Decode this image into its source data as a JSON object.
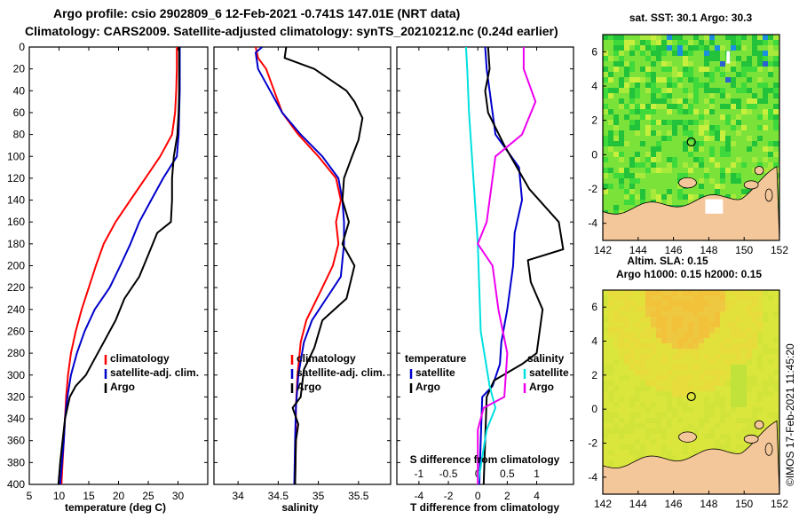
{
  "header": {
    "line1": "Argo profile: csio 2902809_6 12-Feb-2021 -0.741S 147.01E (NRT data)",
    "line2": "Climatology: CARS2009. Satellite-adjusted climatology: synTS_20210212.nc (0.24d earlier)"
  },
  "colors": {
    "climatology": "#ff0000",
    "satellite": "#0000cc",
    "argo": "#000000",
    "cyan": "#00e0e0",
    "magenta": "#ee00ee",
    "land": "#f4c79a"
  },
  "chart_data": [
    {
      "type": "line",
      "title": "",
      "xlabel": "temperature (deg C)",
      "ylabel": "",
      "xlim": [
        5,
        35
      ],
      "ylim": [
        400,
        0
      ],
      "xticks": [
        "5",
        "10",
        "15",
        "20",
        "25",
        "30"
      ],
      "yticks": [
        "0",
        "20",
        "40",
        "60",
        "80",
        "100",
        "120",
        "140",
        "160",
        "180",
        "200",
        "220",
        "240",
        "260",
        "280",
        "300",
        "320",
        "340",
        "360",
        "380",
        "400"
      ],
      "legend": [
        "climatology",
        "satellite-adj. clim.",
        "Argo"
      ],
      "series": [
        {
          "name": "climatology",
          "color": "climatology",
          "points": [
            [
              29.8,
              0
            ],
            [
              29.8,
              20
            ],
            [
              29.7,
              40
            ],
            [
              29.5,
              60
            ],
            [
              29.0,
              80
            ],
            [
              27.0,
              100
            ],
            [
              24.5,
              120
            ],
            [
              22.0,
              140
            ],
            [
              19.5,
              160
            ],
            [
              17.5,
              180
            ],
            [
              16.2,
              200
            ],
            [
              15.0,
              220
            ],
            [
              13.8,
              240
            ],
            [
              12.8,
              260
            ],
            [
              12.0,
              280
            ],
            [
              11.5,
              300
            ],
            [
              11.2,
              320
            ],
            [
              11.0,
              340
            ],
            [
              10.8,
              360
            ],
            [
              10.6,
              380
            ],
            [
              10.4,
              400
            ]
          ]
        },
        {
          "name": "satellite-adj. clim.",
          "color": "satellite",
          "points": [
            [
              30.3,
              0
            ],
            [
              30.3,
              20
            ],
            [
              30.3,
              40
            ],
            [
              30.2,
              60
            ],
            [
              30.1,
              80
            ],
            [
              29.8,
              100
            ],
            [
              27.5,
              120
            ],
            [
              25.5,
              140
            ],
            [
              23.5,
              160
            ],
            [
              22.0,
              180
            ],
            [
              20.3,
              200
            ],
            [
              18.5,
              220
            ],
            [
              16.0,
              240
            ],
            [
              14.3,
              260
            ],
            [
              13.0,
              280
            ],
            [
              12.0,
              300
            ],
            [
              11.4,
              320
            ],
            [
              11.0,
              340
            ],
            [
              10.8,
              360
            ],
            [
              10.5,
              380
            ],
            [
              10.2,
              400
            ]
          ]
        },
        {
          "name": "Argo",
          "color": "argo",
          "points": [
            [
              30.2,
              0
            ],
            [
              30.2,
              20
            ],
            [
              30.2,
              40
            ],
            [
              30.1,
              60
            ],
            [
              29.9,
              80
            ],
            [
              29.3,
              100
            ],
            [
              29.0,
              120
            ],
            [
              29.0,
              140
            ],
            [
              28.8,
              160
            ],
            [
              26.5,
              170
            ],
            [
              25.0,
              190
            ],
            [
              23.5,
              210
            ],
            [
              21.0,
              230
            ],
            [
              19.5,
              250
            ],
            [
              17.5,
              270
            ],
            [
              16.0,
              285
            ],
            [
              14.5,
              300
            ],
            [
              12.8,
              310
            ],
            [
              11.8,
              320
            ],
            [
              11.0,
              340
            ],
            [
              10.6,
              360
            ],
            [
              10.2,
              380
            ],
            [
              9.9,
              400
            ]
          ]
        }
      ]
    },
    {
      "type": "line",
      "title": "",
      "xlabel": "salinity",
      "ylabel": "",
      "xlim": [
        33.7,
        35.9
      ],
      "ylim": [
        400,
        0
      ],
      "xticks": [
        "34",
        "34.5",
        "35",
        "35.5"
      ],
      "legend": [
        "climatology",
        "satellite-adj. clim.",
        "Argo"
      ],
      "series": [
        {
          "name": "climatology",
          "color": "climatology",
          "points": [
            [
              34.22,
              0
            ],
            [
              34.25,
              10
            ],
            [
              34.35,
              20
            ],
            [
              34.45,
              40
            ],
            [
              34.55,
              60
            ],
            [
              34.75,
              80
            ],
            [
              35.0,
              100
            ],
            [
              35.22,
              120
            ],
            [
              35.28,
              140
            ],
            [
              35.22,
              160
            ],
            [
              35.25,
              180
            ],
            [
              35.18,
              200
            ],
            [
              35.05,
              220
            ],
            [
              34.85,
              250
            ],
            [
              34.78,
              270
            ],
            [
              34.74,
              300
            ],
            [
              34.72,
              330
            ],
            [
              34.72,
              360
            ],
            [
              34.71,
              400
            ]
          ]
        },
        {
          "name": "satellite-adj. clim.",
          "color": "satellite",
          "points": [
            [
              34.3,
              0
            ],
            [
              34.22,
              5
            ],
            [
              34.25,
              20
            ],
            [
              34.4,
              40
            ],
            [
              34.55,
              60
            ],
            [
              34.78,
              80
            ],
            [
              35.05,
              100
            ],
            [
              35.25,
              120
            ],
            [
              35.3,
              140
            ],
            [
              35.32,
              160
            ],
            [
              35.32,
              180
            ],
            [
              35.28,
              210
            ],
            [
              35.1,
              230
            ],
            [
              34.92,
              250
            ],
            [
              34.82,
              270
            ],
            [
              34.75,
              300
            ],
            [
              34.72,
              330
            ],
            [
              34.71,
              360
            ],
            [
              34.7,
              400
            ]
          ]
        },
        {
          "name": "Argo",
          "color": "argo",
          "points": [
            [
              34.6,
              0
            ],
            [
              34.58,
              10
            ],
            [
              34.95,
              20
            ],
            [
              35.35,
              40
            ],
            [
              35.45,
              50
            ],
            [
              35.55,
              65
            ],
            [
              35.5,
              85
            ],
            [
              35.42,
              100
            ],
            [
              35.32,
              120
            ],
            [
              35.3,
              140
            ],
            [
              35.38,
              160
            ],
            [
              35.3,
              180
            ],
            [
              35.45,
              200
            ],
            [
              35.35,
              230
            ],
            [
              35.05,
              250
            ],
            [
              34.95,
              275
            ],
            [
              34.82,
              295
            ],
            [
              34.78,
              320
            ],
            [
              34.68,
              330
            ],
            [
              34.75,
              345
            ],
            [
              34.72,
              360
            ],
            [
              34.71,
              400
            ]
          ]
        }
      ]
    },
    {
      "type": "line",
      "title": "",
      "xlabel": "T difference from climatology",
      "ylabel": "",
      "xlim": [
        -5.5,
        6.5
      ],
      "ylim": [
        400,
        0
      ],
      "xticks": [
        "-4",
        "-2",
        "0",
        "2",
        "4"
      ],
      "xlabel_top": "S difference from climatology",
      "xticks_top": [
        "-1",
        "-0.5",
        "0",
        "0.5",
        "1"
      ],
      "legend_left_title": "temperature",
      "legend_left": [
        "satellite",
        "Argo"
      ],
      "legend_right_title": "salinity",
      "legend_right": [
        "satellite",
        "Argo"
      ],
      "series": [
        {
          "name": "T satellite",
          "color": "satellite",
          "points": [
            [
              0.5,
              0
            ],
            [
              0.6,
              20
            ],
            [
              0.8,
              40
            ],
            [
              1.0,
              60
            ],
            [
              1.2,
              80
            ],
            [
              2.8,
              110
            ],
            [
              3.0,
              140
            ],
            [
              2.5,
              170
            ],
            [
              2.4,
              200
            ],
            [
              2.0,
              240
            ],
            [
              1.6,
              270
            ],
            [
              1.5,
              290
            ],
            [
              1.0,
              310
            ],
            [
              0.3,
              320
            ],
            [
              0.2,
              360
            ],
            [
              0.1,
              400
            ]
          ]
        },
        {
          "name": "T Argo",
          "color": "argo",
          "points": [
            [
              0.7,
              0
            ],
            [
              0.8,
              20
            ],
            [
              0.5,
              40
            ],
            [
              0.7,
              60
            ],
            [
              1.8,
              90
            ],
            [
              3.5,
              130
            ],
            [
              5.5,
              160
            ],
            [
              5.8,
              185
            ],
            [
              3.4,
              195
            ],
            [
              3.6,
              215
            ],
            [
              4.4,
              240
            ],
            [
              4.0,
              280
            ],
            [
              3.0,
              290
            ],
            [
              1.1,
              305
            ],
            [
              0.6,
              320
            ],
            [
              0.5,
              360
            ],
            [
              0.4,
              400
            ]
          ]
        },
        {
          "name": "S satellite",
          "color": "cyan",
          "points": [
            [
              -0.2,
              0
            ],
            [
              -0.18,
              20
            ],
            [
              -0.15,
              60
            ],
            [
              -0.1,
              100
            ],
            [
              0.0,
              180
            ],
            [
              0.05,
              260
            ],
            [
              0.2,
              310
            ],
            [
              0.3,
              330
            ],
            [
              0.15,
              350
            ],
            [
              0.0,
              400
            ]
          ]
        },
        {
          "name": "S Argo",
          "color": "magenta",
          "points": [
            [
              0.78,
              0
            ],
            [
              0.78,
              20
            ],
            [
              0.98,
              50
            ],
            [
              0.75,
              80
            ],
            [
              0.3,
              100
            ],
            [
              0.2,
              140
            ],
            [
              0.15,
              160
            ],
            [
              0.0,
              180
            ],
            [
              0.25,
              200
            ],
            [
              0.35,
              240
            ],
            [
              0.5,
              280
            ],
            [
              0.45,
              320
            ],
            [
              0.1,
              330
            ],
            [
              0.0,
              350
            ],
            [
              0.0,
              400
            ]
          ]
        }
      ]
    },
    {
      "type": "heatmap",
      "title": "sat. SST: 30.1 Argo: 30.3",
      "xlim": [
        142,
        152
      ],
      "ylim": [
        -5,
        7
      ],
      "xticks": [
        "142",
        "144",
        "146",
        "148",
        "150",
        "152"
      ],
      "yticks": [
        "6",
        "4",
        "2",
        "0",
        "-2",
        "-4"
      ],
      "marker": [
        147.01,
        0.741
      ]
    },
    {
      "type": "heatmap",
      "title_line1": "Altim. SLA: 0.15",
      "title_line2": "Argo h1000: 0.15 h2000: 0.15",
      "xlim": [
        142,
        152
      ],
      "ylim": [
        -5,
        7
      ],
      "xticks": [
        "142",
        "144",
        "146",
        "148",
        "150",
        "152"
      ],
      "yticks": [
        "6",
        "4",
        "2",
        "0",
        "-2",
        "-4"
      ],
      "marker": [
        147.01,
        0.741
      ]
    }
  ],
  "footer": {
    "credit": "©IMOS 17-Feb-2021 11:45:20"
  }
}
